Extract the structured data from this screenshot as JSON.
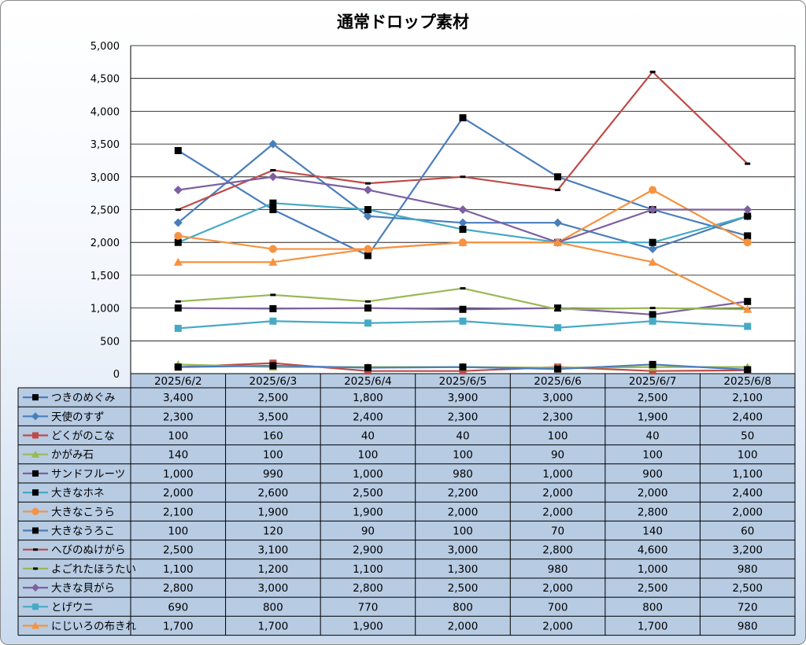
{
  "chart_data": {
    "type": "line",
    "title": "通常ドロップ素材",
    "ylim": [
      0,
      5000
    ],
    "yticks": [
      "5,000",
      "4,500",
      "4,000",
      "3,500",
      "3,000",
      "2,500",
      "2,000",
      "1,500",
      "1,000",
      "500",
      "0"
    ],
    "grid": true,
    "legend": "data-table",
    "categories": [
      "2025/6/2",
      "2025/6/3",
      "2025/6/4",
      "2025/6/5",
      "2025/6/6",
      "2025/6/7",
      "2025/6/8"
    ],
    "series": [
      {
        "name": "つきのめぐみ",
        "color": "#4a7ebb",
        "marker": "square-black",
        "values": [
          3400,
          2500,
          1800,
          3900,
          3000,
          2500,
          2100
        ],
        "labels": [
          "3,400",
          "2,500",
          "1,800",
          "3,900",
          "3,000",
          "2,500",
          "2,100"
        ]
      },
      {
        "name": "天使のすず",
        "color": "#4a7ebb",
        "marker": "diamond",
        "values": [
          2300,
          3500,
          2400,
          2300,
          2300,
          1900,
          2400
        ],
        "labels": [
          "2,300",
          "3,500",
          "2,400",
          "2,300",
          "2,300",
          "1,900",
          "2,400"
        ]
      },
      {
        "name": "どくがのこな",
        "color": "#be4b48",
        "marker": "square",
        "values": [
          100,
          160,
          40,
          40,
          100,
          40,
          50
        ],
        "labels": [
          "100",
          "160",
          "40",
          "40",
          "100",
          "40",
          "50"
        ]
      },
      {
        "name": "かがみ石",
        "color": "#98b954",
        "marker": "triangle",
        "values": [
          140,
          100,
          100,
          100,
          90,
          100,
          100
        ],
        "labels": [
          "140",
          "100",
          "100",
          "100",
          "90",
          "100",
          "100"
        ]
      },
      {
        "name": "サンドフルーツ",
        "color": "#7d60a0",
        "marker": "square-black",
        "values": [
          1000,
          990,
          1000,
          980,
          1000,
          900,
          1100
        ],
        "labels": [
          "1,000",
          "990",
          "1,000",
          "980",
          "1,000",
          "900",
          "1,100"
        ]
      },
      {
        "name": "大きなホネ",
        "color": "#46aac5",
        "marker": "square-black",
        "values": [
          2000,
          2600,
          2500,
          2200,
          2000,
          2000,
          2400
        ],
        "labels": [
          "2,000",
          "2,600",
          "2,500",
          "2,200",
          "2,000",
          "2,000",
          "2,400"
        ]
      },
      {
        "name": "大きなこうら",
        "color": "#f69240",
        "marker": "circle",
        "values": [
          2100,
          1900,
          1900,
          2000,
          2000,
          2800,
          2000
        ],
        "labels": [
          "2,100",
          "1,900",
          "1,900",
          "2,000",
          "2,000",
          "2,800",
          "2,000"
        ]
      },
      {
        "name": "大きなうろこ",
        "color": "#4a7ebb",
        "marker": "square-black",
        "values": [
          100,
          120,
          90,
          100,
          70,
          140,
          60
        ],
        "labels": [
          "100",
          "120",
          "90",
          "100",
          "70",
          "140",
          "60"
        ]
      },
      {
        "name": "へびのぬけがら",
        "color": "#be4b48",
        "marker": "dash",
        "values": [
          2500,
          3100,
          2900,
          3000,
          2800,
          4600,
          3200
        ],
        "labels": [
          "2,500",
          "3,100",
          "2,900",
          "3,000",
          "2,800",
          "4,600",
          "3,200"
        ]
      },
      {
        "name": "よごれたほうたい",
        "color": "#98b954",
        "marker": "dash",
        "values": [
          1100,
          1200,
          1100,
          1300,
          980,
          1000,
          980
        ],
        "labels": [
          "1,100",
          "1,200",
          "1,100",
          "1,300",
          "980",
          "1,000",
          "980"
        ]
      },
      {
        "name": "大きな貝がら",
        "color": "#7d60a0",
        "marker": "diamond",
        "values": [
          2800,
          3000,
          2800,
          2500,
          2000,
          2500,
          2500
        ],
        "labels": [
          "2,800",
          "3,000",
          "2,800",
          "2,500",
          "2,000",
          "2,500",
          "2,500"
        ]
      },
      {
        "name": "とげウニ",
        "color": "#46aac5",
        "marker": "square",
        "values": [
          690,
          800,
          770,
          800,
          700,
          800,
          720
        ],
        "labels": [
          "690",
          "800",
          "770",
          "800",
          "700",
          "800",
          "720"
        ]
      },
      {
        "name": "にじいろの布きれ",
        "color": "#f69240",
        "marker": "triangle",
        "values": [
          1700,
          1700,
          1900,
          2000,
          2000,
          1700,
          980
        ],
        "labels": [
          "1,700",
          "1,700",
          "1,900",
          "2,000",
          "2,000",
          "1,700",
          "980"
        ]
      }
    ]
  }
}
